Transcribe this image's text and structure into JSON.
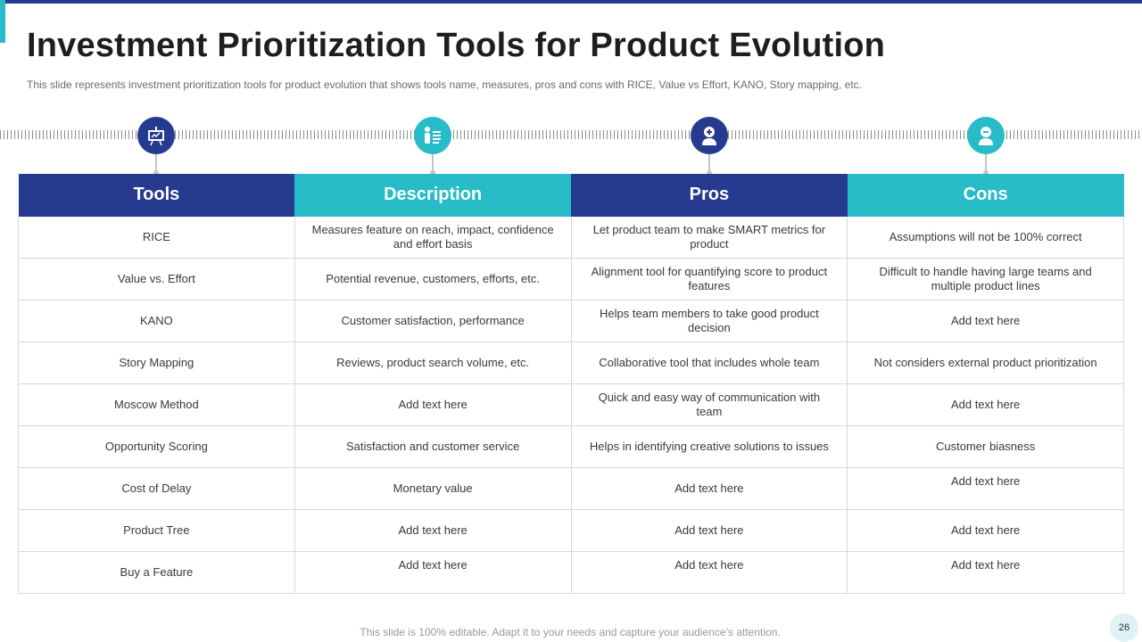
{
  "slide": {
    "title": "Investment Prioritization Tools for Product Evolution",
    "subtitle": "This slide represents investment prioritization tools for product evolution that shows tools name, measures, pros and cons with RICE, Value vs Effort, KANO, Story mapping, etc.",
    "footer": "This slide is 100% editable. Adapt it to your needs and capture your audience’s attention.",
    "page_number": "26"
  },
  "colors": {
    "navy": "#263a8f",
    "teal": "#27bcc8"
  },
  "icons": [
    "presentation-icon",
    "person-list-icon",
    "person-plus-icon",
    "person-minus-icon"
  ],
  "table": {
    "headers": [
      "Tools",
      "Description",
      "Pros",
      "Cons"
    ],
    "rows": [
      {
        "tool": "RICE",
        "description": "Measures feature on reach, impact, confidence and effort basis",
        "pros": "Let product team to make SMART metrics for product",
        "cons": "Assumptions will not be 100% correct"
      },
      {
        "tool": "Value vs. Effort",
        "description": "Potential revenue,  customers, efforts, etc.",
        "pros": "Alignment tool for quantifying score to product features",
        "cons": "Difficult to handle having  large teams and multiple product lines"
      },
      {
        "tool": "KANO",
        "description": "Customer satisfaction, performance",
        "pros": "Helps team members to take good product decision",
        "cons": "Add text here"
      },
      {
        "tool": "Story Mapping",
        "description": "Reviews,  product search volume,  etc.",
        "pros": "Collaborative  tool that includes whole team",
        "cons": "Not considers external product prioritization"
      },
      {
        "tool": "Moscow Method",
        "description": "Add text here",
        "pros": "Quick and easy way of communication with team",
        "cons": "Add text here"
      },
      {
        "tool": "Opportunity Scoring",
        "description": "Satisfaction and customer service",
        "pros": "Helps in identifying creative solutions to issues",
        "cons": "Customer biasness"
      },
      {
        "tool": "Cost of Delay",
        "description": "Monetary value",
        "pros": "Add text here",
        "cons": "Add text here"
      },
      {
        "tool": "Product Tree",
        "description": "Add text here",
        "pros": "Add text here",
        "cons": "Add text here"
      },
      {
        "tool": "Buy a Feature",
        "description": "Add text here",
        "pros": "Add text here",
        "cons": "Add text here"
      }
    ]
  }
}
